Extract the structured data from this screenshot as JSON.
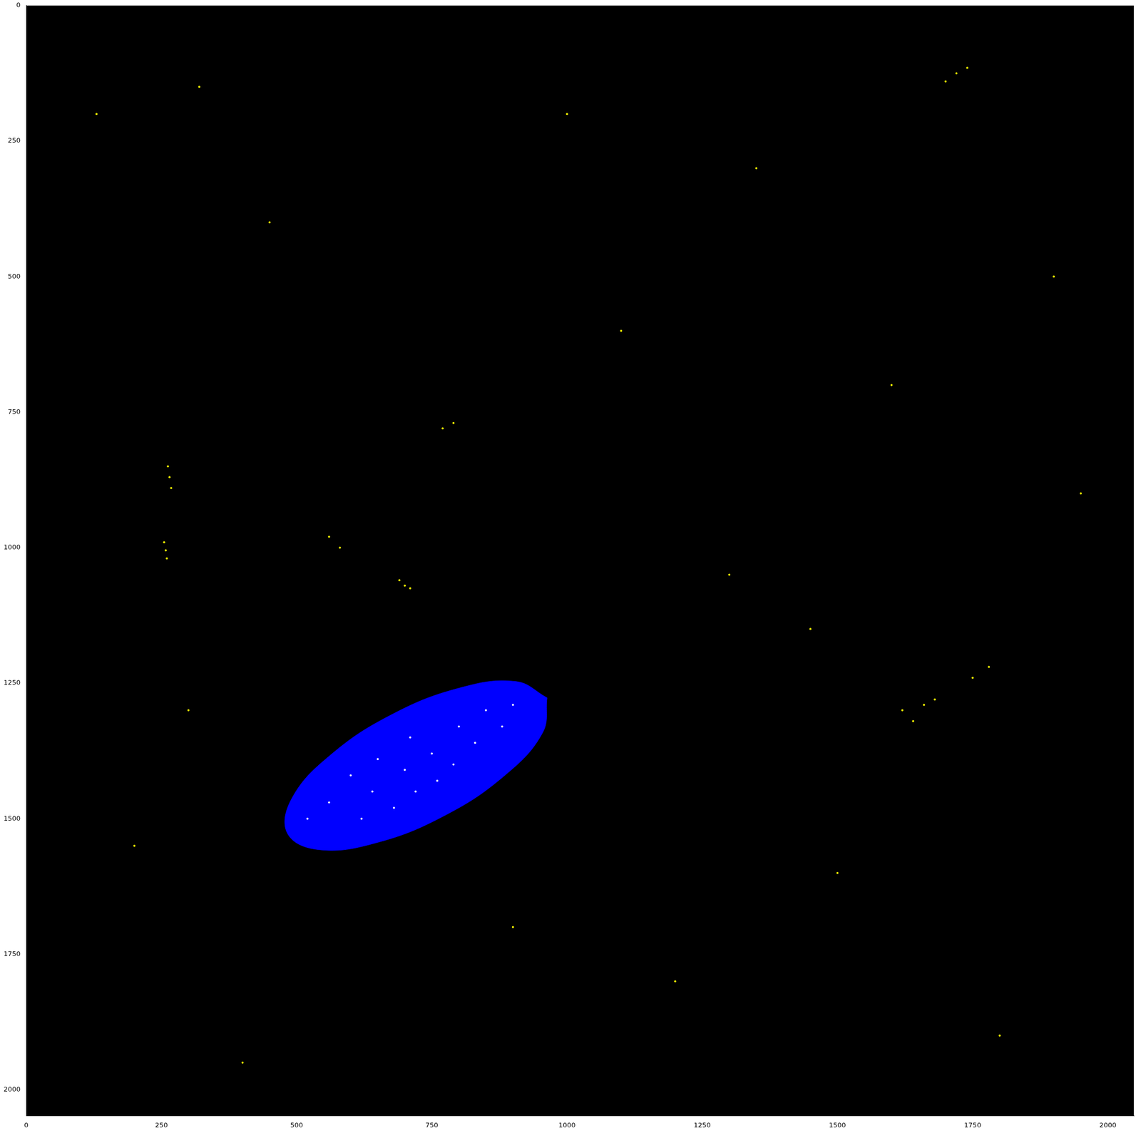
{
  "chart_data": {
    "type": "scatter",
    "xlim": [
      0,
      2048
    ],
    "ylim": [
      2048,
      0
    ],
    "xticks": [
      0,
      250,
      500,
      750,
      1000,
      1250,
      1500,
      1750,
      2000
    ],
    "yticks": [
      0,
      250,
      500,
      750,
      1000,
      1250,
      1500,
      1750,
      2000
    ],
    "grid": false,
    "series": [
      {
        "type": "area",
        "color": "#0000ff",
        "x": [
          963,
          955,
          885,
          772,
          645,
          540,
          483,
          491,
          561,
          674,
          801,
          906,
          963
        ],
        "values": [
          1277,
          1341,
          1420,
          1495,
          1545,
          1557,
          1527,
          1463,
          1384,
          1309,
          1259,
          1247,
          1277
        ]
      },
      {
        "color": "#ffffff",
        "marker": "point",
        "x": [
          600,
          650,
          700,
          720,
          750,
          800,
          850,
          680,
          620,
          760,
          900,
          560,
          830,
          710,
          640,
          880,
          790,
          520
        ],
        "values": [
          1420,
          1390,
          1410,
          1450,
          1380,
          1330,
          1300,
          1480,
          1500,
          1430,
          1290,
          1470,
          1360,
          1350,
          1450,
          1330,
          1400,
          1500
        ]
      },
      {
        "color": "#ffff00",
        "marker": "point",
        "x": [
          262,
          265,
          268,
          255,
          258,
          260,
          690,
          700,
          710,
          1700,
          1720,
          1740,
          1620,
          1640,
          1660,
          1680,
          1750,
          1780,
          770,
          790,
          560,
          580,
          130,
          320,
          450,
          1100,
          1350,
          1900,
          1950,
          300,
          900,
          1200,
          1500,
          1800,
          400,
          1000,
          1300,
          1600,
          200,
          1450
        ],
        "values": [
          850,
          870,
          890,
          990,
          1005,
          1020,
          1060,
          1070,
          1075,
          140,
          125,
          115,
          1300,
          1320,
          1290,
          1280,
          1240,
          1220,
          780,
          770,
          980,
          1000,
          200,
          150,
          400,
          600,
          300,
          500,
          900,
          1300,
          1700,
          1800,
          1600,
          1900,
          1950,
          200,
          1050,
          700,
          1550,
          1150
        ]
      }
    ]
  }
}
